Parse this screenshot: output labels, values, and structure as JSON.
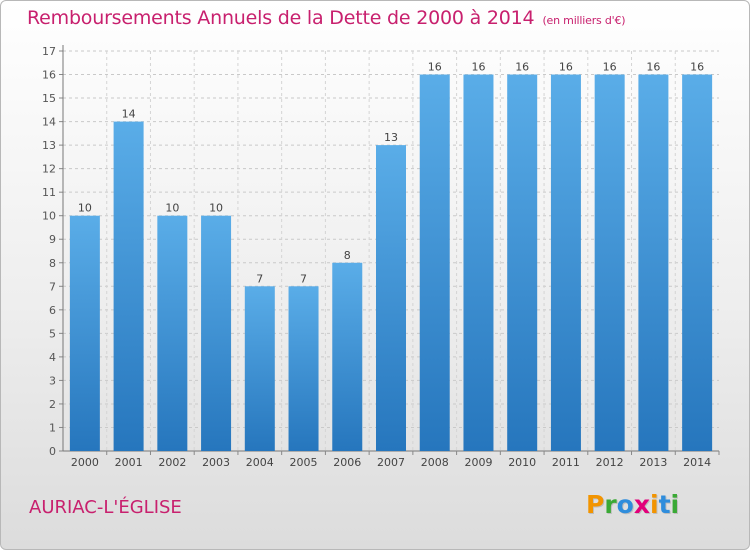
{
  "chart_data": {
    "type": "bar",
    "title": "Remboursements Annuels de la Dette de 2000 à 2014",
    "subtitle": "(en milliers d'€)",
    "categories": [
      "2000",
      "2001",
      "2002",
      "2003",
      "2004",
      "2005",
      "2006",
      "2007",
      "2008",
      "2009",
      "2010",
      "2011",
      "2012",
      "2013",
      "2014"
    ],
    "values": [
      10,
      14,
      10,
      10,
      7,
      7,
      8,
      13,
      16,
      16,
      16,
      16,
      16,
      16,
      16
    ],
    "ylim": [
      0,
      17
    ],
    "yticks": [
      0,
      1,
      2,
      3,
      4,
      5,
      6,
      7,
      8,
      9,
      10,
      11,
      12,
      13,
      14,
      15,
      16,
      17
    ],
    "grid": true,
    "bar_color": "#3a8fd6"
  },
  "place_name": "AURIAC-L'ÉGLISE",
  "logo": {
    "text": "Proxiti",
    "letters": [
      {
        "ch": "P",
        "color": "#f29400"
      },
      {
        "ch": "r",
        "color": "#3aa935"
      },
      {
        "ch": "o",
        "color": "#2f8ddc"
      },
      {
        "ch": "x",
        "color": "#e2007a"
      },
      {
        "ch": "i",
        "color": "#f29400"
      },
      {
        "ch": "t",
        "color": "#2f8ddc"
      },
      {
        "ch": "i",
        "color": "#3aa935"
      }
    ]
  }
}
